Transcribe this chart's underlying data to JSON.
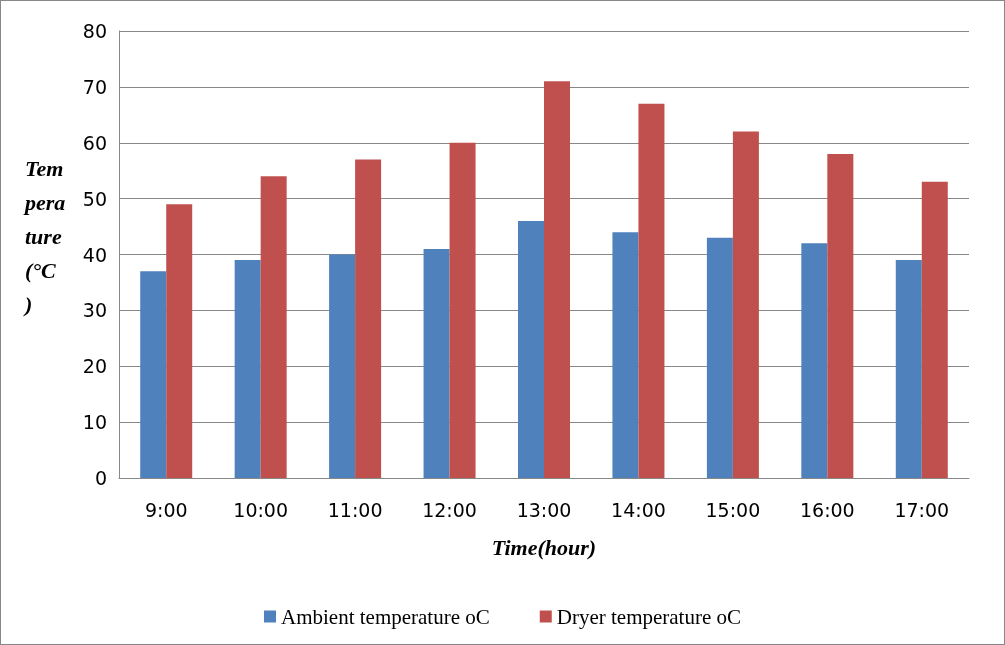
{
  "chart_data": {
    "type": "bar",
    "xlabel": "Time(hour)",
    "ylabel": "Temperature (°C)",
    "categories": [
      "9:00",
      "10:00",
      "11:00",
      "12:00",
      "13:00",
      "14:00",
      "15:00",
      "16:00",
      "17:00"
    ],
    "series": [
      {
        "name": "Ambient temperature oC",
        "color": "#4f81bd",
        "values": [
          37,
          39,
          40,
          41,
          46,
          44,
          43,
          42,
          39
        ]
      },
      {
        "name": "Dryer temperature oC",
        "color": "#c0504d",
        "values": [
          49,
          54,
          57,
          60,
          71,
          67,
          62,
          58,
          53
        ]
      }
    ],
    "ylim": [
      0,
      80
    ],
    "yticks": [
      0,
      10,
      20,
      30,
      40,
      50,
      60,
      70,
      80
    ],
    "grid": "y",
    "legend": "bottom"
  }
}
